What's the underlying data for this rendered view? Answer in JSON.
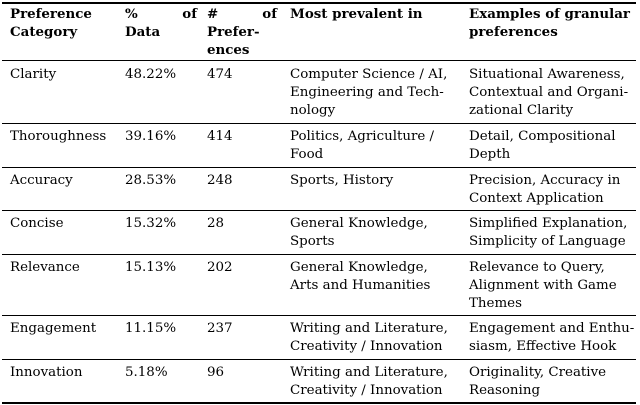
{
  "header": {
    "category_lines": [
      "Preference",
      "Category"
    ],
    "data_pct_parts": [
      "%",
      "of"
    ],
    "data_pct_line2": "Data",
    "num_parts": [
      "#",
      "of"
    ],
    "num_line2": "Prefer-",
    "num_line3": "ences",
    "prevalent": "Most prevalent in",
    "examples_lines": [
      "Examples of granular",
      "preferences"
    ]
  },
  "rows": [
    {
      "category": "Clarity",
      "pct": "48.22%",
      "count": "474",
      "prevalent": [
        "Computer Science / AI,",
        "Engineering and Tech-",
        "nology"
      ],
      "examples": [
        "Situational Awareness,",
        "Contextual and Organi-",
        "zational Clarity"
      ]
    },
    {
      "category": "Thoroughness",
      "pct": "39.16%",
      "count": "414",
      "prevalent": [
        "Politics, Agriculture /",
        "Food"
      ],
      "examples": [
        "Detail, Compositional",
        "Depth"
      ]
    },
    {
      "category": "Accuracy",
      "pct": "28.53%",
      "count": "248",
      "prevalent": [
        "Sports, History"
      ],
      "examples": [
        "Precision, Accuracy in",
        "Context Application"
      ]
    },
    {
      "category": "Concise",
      "pct": "15.32%",
      "count": "28",
      "prevalent": [
        "General Knowledge,",
        "Sports"
      ],
      "examples": [
        "Simplified Explanation,",
        "Simplicity of Language"
      ]
    },
    {
      "category": "Relevance",
      "pct": "15.13%",
      "count": "202",
      "prevalent": [
        "General Knowledge,",
        "Arts and Humanities"
      ],
      "examples": [
        "Relevance to Query,",
        "Alignment with Game",
        "Themes"
      ]
    },
    {
      "category": "Engagement",
      "pct": "11.15%",
      "count": "237",
      "prevalent": [
        "Writing and Literature,",
        "Creativity / Innovation"
      ],
      "examples": [
        "Engagement and Enthu-",
        "siasm, Effective Hook"
      ]
    },
    {
      "category": "Innovation",
      "pct": "5.18%",
      "count": "96",
      "prevalent": [
        "Writing and Literature,",
        "Creativity / Innovation"
      ],
      "examples": [
        "Originality, Creative",
        "Reasoning"
      ]
    }
  ]
}
